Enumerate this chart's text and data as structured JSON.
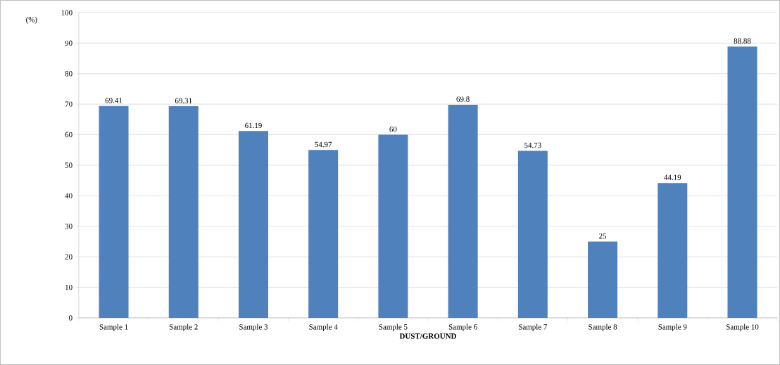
{
  "chart_data": {
    "type": "bar",
    "xlabel": "DUST/GROUND",
    "ylabel": "(%)",
    "categories": [
      "Sample 1",
      "Sample 2",
      "Sample 3",
      "Sample 4",
      "Sample 5",
      "Sample 6",
      "Sample 7",
      "Sample 8",
      "Sample 9",
      "Sample 10"
    ],
    "values": [
      69.41,
      69.31,
      61.19,
      54.97,
      60,
      69.8,
      54.73,
      25,
      44.19,
      88.88
    ],
    "color": "#4f81bd",
    "ylim": [
      0,
      100
    ],
    "yticks": [
      0,
      10,
      20,
      30,
      40,
      50,
      60,
      70,
      80,
      90,
      100
    ],
    "grid": "y",
    "data_labels": true
  }
}
